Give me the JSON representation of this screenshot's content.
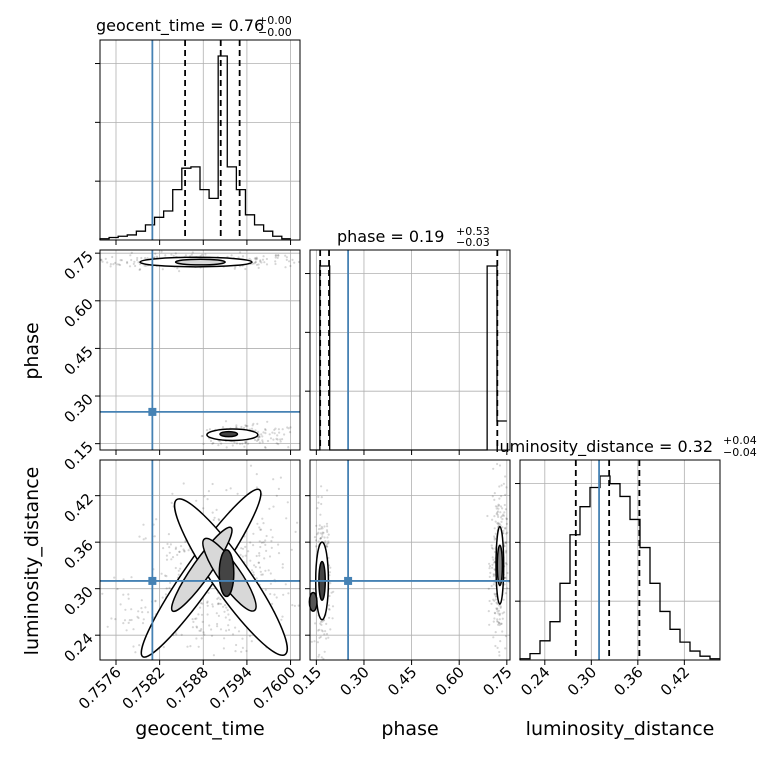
{
  "chart_data": {
    "type": "corner",
    "parameters": [
      "geocent_time",
      "phase",
      "luminosity_distance"
    ],
    "truth": {
      "geocent_time": 0.7581,
      "phase": 0.25,
      "luminosity_distance": 0.31
    },
    "truth_color": "#4682b4",
    "diagonal_titles": [
      {
        "param": "geocent_time",
        "text": "geocent_time = 0.76",
        "sup": "+0.00",
        "sub": "−0.00"
      },
      {
        "param": "phase",
        "text": "phase = 0.19",
        "sup": "+0.53",
        "sub": "−0.03"
      },
      {
        "param": "luminosity_distance",
        "text": "luminosity_distance = 0.32",
        "sup": "+0.04",
        "sub": "−0.04"
      }
    ],
    "ticks": {
      "geocent_time": [
        "0.7576",
        "0.7582",
        "0.7588",
        "0.7594",
        "0.7600"
      ],
      "phase": [
        "0.15",
        "0.30",
        "0.45",
        "0.60",
        "0.75"
      ],
      "luminosity_distance": [
        "0.24",
        "0.30",
        "0.36",
        "0.42"
      ]
    },
    "ranges": {
      "geocent_time": [
        0.75738,
        0.76013
      ],
      "phase": [
        0.13,
        0.76
      ],
      "luminosity_distance": [
        0.208,
        0.466
      ]
    },
    "hist_geocent_time": {
      "bin_edges": [
        0.75738,
        0.757505,
        0.75763,
        0.757755,
        0.75788,
        0.758005,
        0.75813,
        0.758255,
        0.75838,
        0.758505,
        0.75863,
        0.758755,
        0.75888,
        0.759005,
        0.75913,
        0.759255,
        0.75938,
        0.759505,
        0.75963,
        0.759755,
        0.75988,
        0.760005
      ],
      "counts": [
        1,
        2,
        3,
        4,
        7,
        12,
        18,
        23,
        40,
        57,
        58,
        40,
        33,
        146,
        58,
        40,
        20,
        12,
        7,
        3,
        1
      ],
      "quantiles": [
        0.75855,
        0.75904,
        0.7593
      ]
    },
    "hist_phase": {
      "bin_edges": [
        0.13,
        0.161,
        0.192,
        0.223,
        0.254,
        0.285,
        0.316,
        0.347,
        0.378,
        0.409,
        0.44,
        0.471,
        0.502,
        0.533,
        0.564,
        0.595,
        0.626,
        0.657,
        0.688,
        0.719,
        0.75
      ],
      "counts": [
        0,
        146,
        0,
        0,
        0,
        0,
        0,
        0,
        0,
        0,
        0,
        0,
        0,
        0,
        0,
        0,
        0,
        0,
        146,
        23
      ],
      "quantiles": [
        0.162,
        0.19,
        0.72
      ]
    },
    "hist_luminosity_distance": {
      "bin_edges": [
        0.208,
        0.2209,
        0.2338,
        0.2467,
        0.2596,
        0.2725,
        0.2854,
        0.2983,
        0.3112,
        0.3241,
        0.337,
        0.3499,
        0.3628,
        0.3757,
        0.3886,
        0.4015,
        0.4144,
        0.4273,
        0.4402,
        0.4531,
        0.466
      ],
      "counts": [
        1,
        5,
        15,
        30,
        60,
        98,
        120,
        135,
        144,
        138,
        128,
        110,
        88,
        60,
        38,
        24,
        14,
        7,
        3,
        1
      ],
      "quantiles": [
        0.28,
        0.323,
        0.362
      ]
    },
    "scatter_phase_vs_geocent_time": {
      "clusters": [
        {
          "x": 0.7587,
          "y": 0.725,
          "sx": 0.00075,
          "sy": 0.012,
          "n": 260
        },
        {
          "x": 0.7592,
          "y": 0.175,
          "sx": 0.0002,
          "sy": 0.014,
          "n": 120
        },
        {
          "x": 0.7596,
          "y": 0.17,
          "sx": 0.00025,
          "sy": 0.02,
          "n": 70
        }
      ],
      "contours": [
        {
          "x": 0.7587,
          "y": 0.722,
          "rx": 0.00077,
          "ry": 0.015,
          "fill": "#ffffff"
        },
        {
          "x": 0.75876,
          "y": 0.722,
          "rx": 0.00034,
          "ry": 0.009,
          "fill": "#d8d8d8"
        },
        {
          "x": 0.7592,
          "y": 0.178,
          "rx": 0.00035,
          "ry": 0.018,
          "fill": "#ffffff"
        },
        {
          "x": 0.75915,
          "y": 0.18,
          "rx": 0.00012,
          "ry": 0.008,
          "fill": "#444444"
        }
      ]
    },
    "scatter_lumdist_vs_geocent_time": {
      "clusters": [
        {
          "x": 0.75885,
          "y": 0.31,
          "sx": 0.00055,
          "sy": 0.05,
          "n": 260
        },
        {
          "x": 0.7592,
          "y": 0.33,
          "sx": 0.0004,
          "sy": 0.055,
          "n": 260
        },
        {
          "x": 0.75805,
          "y": 0.262,
          "sx": 0.0004,
          "sy": 0.014,
          "n": 60
        }
      ],
      "contours": [
        {
          "x": 0.75877,
          "y": 0.32,
          "rx": 0.0014,
          "ry": 0.02,
          "rot": -55,
          "fill": "#ffffff"
        },
        {
          "x": 0.75918,
          "y": 0.315,
          "rx": 0.0013,
          "ry": 0.024,
          "rot": 55,
          "fill": "#ffffff"
        },
        {
          "x": 0.75878,
          "y": 0.325,
          "rx": 0.0007,
          "ry": 0.012,
          "rot": -55,
          "fill": "#d8d8d8"
        },
        {
          "x": 0.75916,
          "y": 0.318,
          "rx": 0.0006,
          "ry": 0.014,
          "rot": 55,
          "fill": "#d8d8d8"
        },
        {
          "x": 0.75912,
          "y": 0.32,
          "rx": 0.0001,
          "ry": 0.03,
          "rot": 0,
          "fill": "#444444"
        }
      ]
    },
    "scatter_lumdist_vs_phase": {
      "clusters": [
        {
          "x": 0.17,
          "y": 0.31,
          "sx": 0.012,
          "sy": 0.045,
          "n": 240
        },
        {
          "x": 0.725,
          "y": 0.33,
          "sx": 0.012,
          "sy": 0.05,
          "n": 300
        }
      ],
      "contours": [
        {
          "x": 0.168,
          "y": 0.31,
          "rx": 0.02,
          "ry": 0.05,
          "rot": 0,
          "fill": "#ffffff"
        },
        {
          "x": 0.168,
          "y": 0.31,
          "rx": 0.01,
          "ry": 0.025,
          "rot": 0,
          "fill": "#444444"
        },
        {
          "x": 0.14,
          "y": 0.283,
          "rx": 0.012,
          "ry": 0.012,
          "rot": 0,
          "fill": "#555555"
        },
        {
          "x": 0.728,
          "y": 0.33,
          "rx": 0.012,
          "ry": 0.05,
          "rot": 0,
          "fill": "#ffffff"
        },
        {
          "x": 0.728,
          "y": 0.33,
          "rx": 0.008,
          "ry": 0.026,
          "rot": 0,
          "fill": "#888888"
        }
      ]
    }
  }
}
